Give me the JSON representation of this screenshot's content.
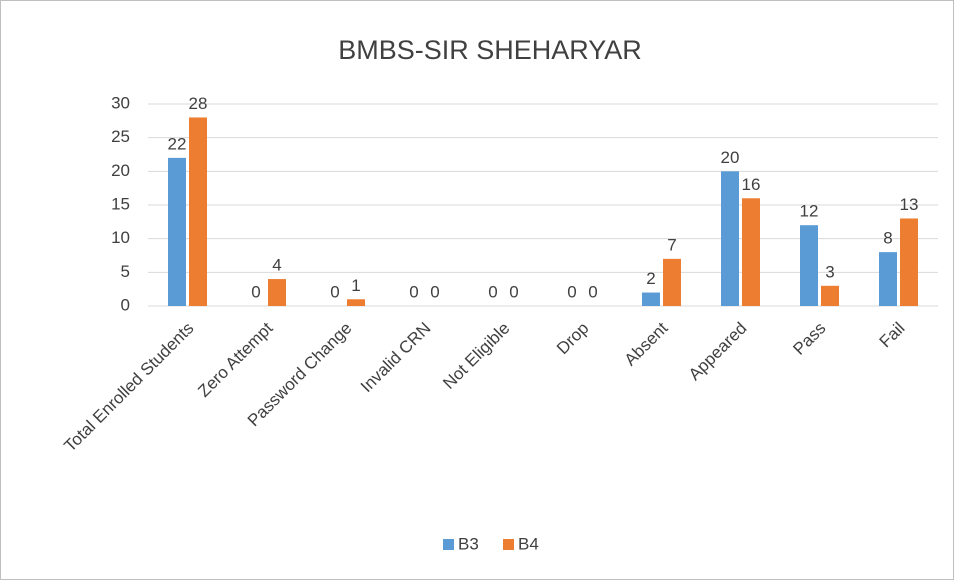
{
  "chart_data": {
    "type": "bar",
    "title": "BMBS-SIR SHEHARYAR",
    "categories": [
      "Total Enrolled Students",
      "Zero Attempt",
      "Password Change",
      "Invalid CRN",
      "Not Eligible",
      "Drop",
      "Absent",
      "Appeared",
      "Pass",
      "Fail"
    ],
    "series": [
      {
        "name": "B3",
        "color": "#5b9bd5",
        "values": [
          22,
          0,
          0,
          0,
          0,
          0,
          2,
          20,
          12,
          8
        ]
      },
      {
        "name": "B4",
        "color": "#ed7d31",
        "values": [
          28,
          4,
          1,
          0,
          0,
          0,
          7,
          16,
          3,
          13
        ]
      }
    ],
    "ylim": [
      0,
      30
    ],
    "yticks": [
      0,
      5,
      10,
      15,
      20,
      25,
      30
    ],
    "grid": true,
    "legend": "bottom"
  }
}
